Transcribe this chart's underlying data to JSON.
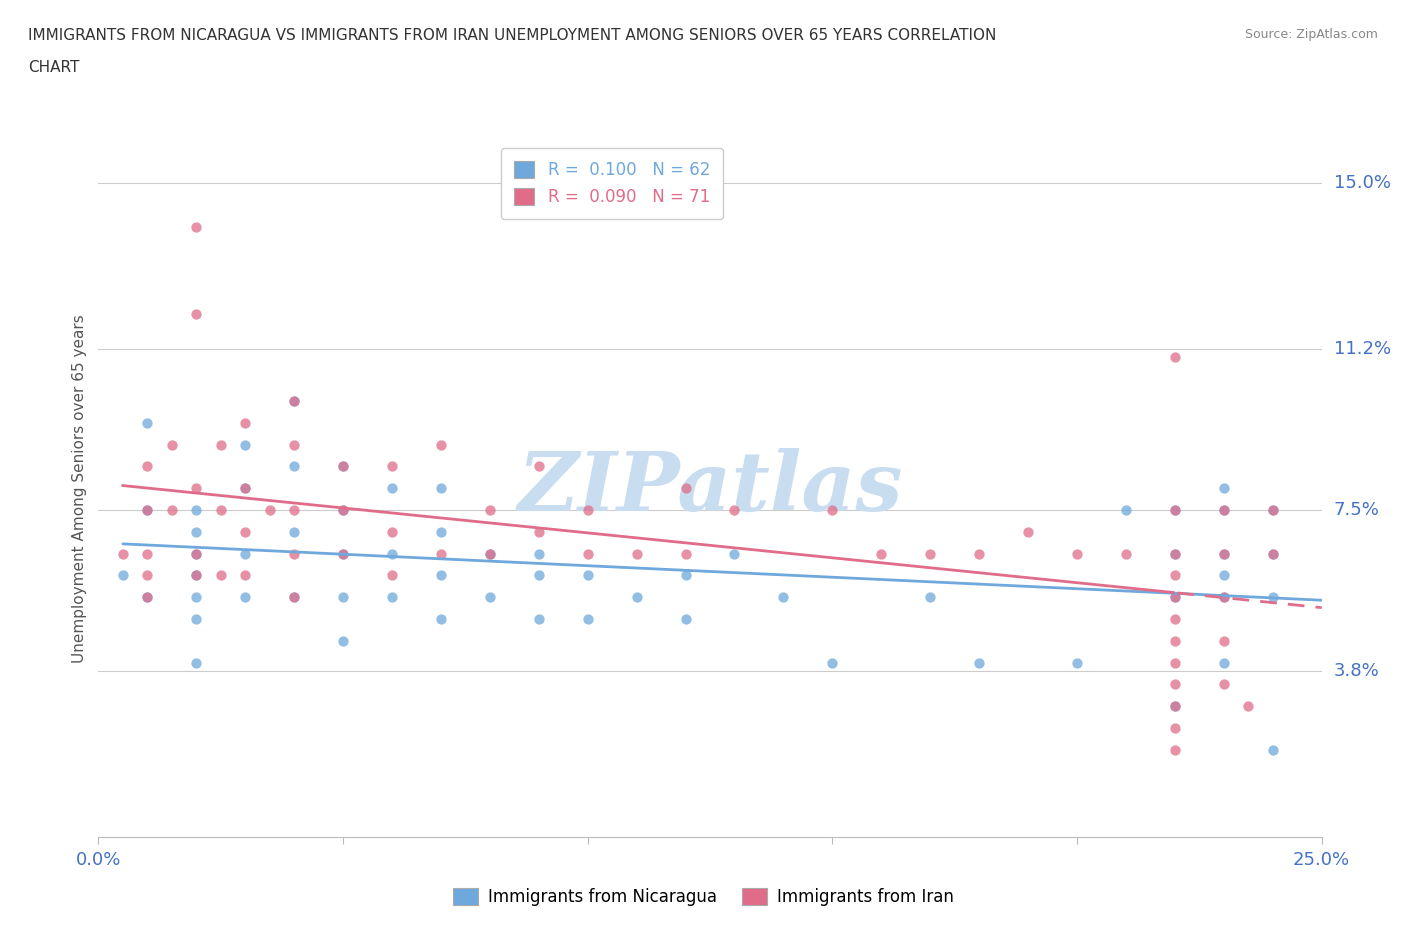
{
  "title_line1": "IMMIGRANTS FROM NICARAGUA VS IMMIGRANTS FROM IRAN UNEMPLOYMENT AMONG SENIORS OVER 65 YEARS CORRELATION",
  "title_line2": "CHART",
  "source": "Source: ZipAtlas.com",
  "ylabel": "Unemployment Among Seniors over 65 years",
  "xlim": [
    0.0,
    0.25
  ],
  "ylim": [
    0.0,
    0.16
  ],
  "xticks": [
    0.0,
    0.05,
    0.1,
    0.15,
    0.2,
    0.25
  ],
  "xtick_labels": [
    "0.0%",
    "",
    "",
    "",
    "",
    "25.0%"
  ],
  "ytick_right": [
    0.038,
    0.075,
    0.112,
    0.15
  ],
  "ytick_right_labels": [
    "3.8%",
    "7.5%",
    "11.2%",
    "15.0%"
  ],
  "nicaragua_color": "#6fa8dc",
  "iran_color": "#e06c8a",
  "nicaragua_R": 0.1,
  "nicaragua_N": 62,
  "iran_R": 0.09,
  "iran_N": 71,
  "watermark": "ZIPatlas",
  "watermark_color": "#c8ddf0",
  "nicaragua_x": [
    0.005,
    0.01,
    0.01,
    0.01,
    0.02,
    0.02,
    0.02,
    0.02,
    0.02,
    0.02,
    0.02,
    0.03,
    0.03,
    0.03,
    0.03,
    0.04,
    0.04,
    0.04,
    0.04,
    0.05,
    0.05,
    0.05,
    0.05,
    0.05,
    0.06,
    0.06,
    0.06,
    0.07,
    0.07,
    0.07,
    0.07,
    0.08,
    0.08,
    0.09,
    0.09,
    0.09,
    0.1,
    0.1,
    0.11,
    0.12,
    0.12,
    0.13,
    0.14,
    0.15,
    0.17,
    0.18,
    0.2,
    0.21,
    0.22,
    0.22,
    0.22,
    0.22,
    0.23,
    0.23,
    0.23,
    0.23,
    0.23,
    0.23,
    0.24,
    0.24,
    0.24,
    0.24
  ],
  "nicaragua_y": [
    0.06,
    0.095,
    0.075,
    0.055,
    0.075,
    0.07,
    0.065,
    0.06,
    0.055,
    0.05,
    0.04,
    0.09,
    0.08,
    0.065,
    0.055,
    0.1,
    0.085,
    0.07,
    0.055,
    0.085,
    0.075,
    0.065,
    0.055,
    0.045,
    0.08,
    0.065,
    0.055,
    0.08,
    0.07,
    0.06,
    0.05,
    0.065,
    0.055,
    0.065,
    0.06,
    0.05,
    0.06,
    0.05,
    0.055,
    0.06,
    0.05,
    0.065,
    0.055,
    0.04,
    0.055,
    0.04,
    0.04,
    0.075,
    0.075,
    0.065,
    0.055,
    0.03,
    0.08,
    0.075,
    0.065,
    0.06,
    0.055,
    0.04,
    0.075,
    0.065,
    0.055,
    0.02
  ],
  "iran_x": [
    0.005,
    0.01,
    0.01,
    0.01,
    0.01,
    0.01,
    0.015,
    0.015,
    0.02,
    0.02,
    0.02,
    0.02,
    0.02,
    0.025,
    0.025,
    0.025,
    0.03,
    0.03,
    0.03,
    0.03,
    0.035,
    0.04,
    0.04,
    0.04,
    0.04,
    0.04,
    0.05,
    0.05,
    0.05,
    0.06,
    0.06,
    0.06,
    0.07,
    0.07,
    0.08,
    0.08,
    0.09,
    0.09,
    0.1,
    0.1,
    0.11,
    0.12,
    0.12,
    0.13,
    0.15,
    0.16,
    0.17,
    0.18,
    0.19,
    0.2,
    0.21,
    0.22,
    0.22,
    0.22,
    0.22,
    0.22,
    0.22,
    0.22,
    0.22,
    0.22,
    0.22,
    0.22,
    0.22,
    0.23,
    0.23,
    0.23,
    0.23,
    0.23,
    0.235,
    0.24,
    0.24
  ],
  "iran_y": [
    0.065,
    0.085,
    0.075,
    0.065,
    0.06,
    0.055,
    0.09,
    0.075,
    0.14,
    0.12,
    0.08,
    0.065,
    0.06,
    0.09,
    0.075,
    0.06,
    0.095,
    0.08,
    0.07,
    0.06,
    0.075,
    0.1,
    0.09,
    0.075,
    0.065,
    0.055,
    0.085,
    0.075,
    0.065,
    0.085,
    0.07,
    0.06,
    0.09,
    0.065,
    0.075,
    0.065,
    0.085,
    0.07,
    0.075,
    0.065,
    0.065,
    0.08,
    0.065,
    0.075,
    0.075,
    0.065,
    0.065,
    0.065,
    0.07,
    0.065,
    0.065,
    0.11,
    0.075,
    0.065,
    0.06,
    0.055,
    0.05,
    0.045,
    0.04,
    0.035,
    0.03,
    0.025,
    0.02,
    0.075,
    0.065,
    0.055,
    0.045,
    0.035,
    0.03,
    0.075,
    0.065
  ]
}
